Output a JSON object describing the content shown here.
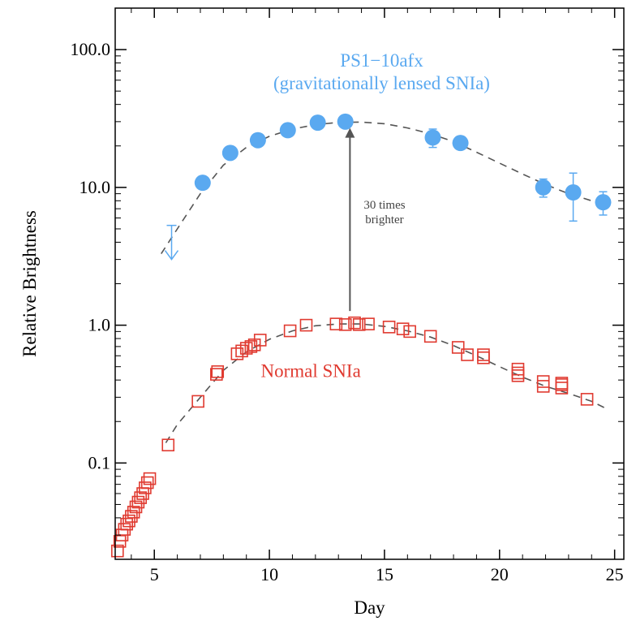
{
  "chart_data": {
    "type": "scatter",
    "title": "",
    "xlabel": "Day",
    "ylabel": "Relative Brightness",
    "xlim": [
      3.3,
      25.4
    ],
    "ylim": [
      0.02,
      200
    ],
    "yscale": "log",
    "grid": false,
    "x_ticks": [
      5,
      10,
      15,
      20,
      25
    ],
    "x_tick_labels": [
      "5",
      "10",
      "15",
      "20",
      "25"
    ],
    "y_ticks": [
      0.1,
      1.0,
      10.0,
      100.0
    ],
    "y_tick_labels": [
      "0.1",
      "1.0",
      "10.0",
      "100.0"
    ],
    "colors": {
      "lensed": "#5aa9f0",
      "normal": "#e03a30",
      "fit": "#555555",
      "arrow": "#555555"
    },
    "series": [
      {
        "name": "Normal SNIa",
        "marker": "open-square",
        "color": "#e03a30",
        "points": [
          [
            3.4,
            0.023
          ],
          [
            3.5,
            0.027
          ],
          [
            3.6,
            0.03
          ],
          [
            3.7,
            0.033
          ],
          [
            3.8,
            0.036
          ],
          [
            3.9,
            0.038
          ],
          [
            4.0,
            0.041
          ],
          [
            4.1,
            0.044
          ],
          [
            4.2,
            0.048
          ],
          [
            4.3,
            0.052
          ],
          [
            4.4,
            0.056
          ],
          [
            4.5,
            0.06
          ],
          [
            4.6,
            0.066
          ],
          [
            4.7,
            0.072
          ],
          [
            4.8,
            0.077
          ],
          [
            5.6,
            0.135
          ],
          [
            6.9,
            0.28
          ],
          [
            7.7,
            0.44
          ],
          [
            7.75,
            0.46
          ],
          [
            8.6,
            0.62
          ],
          [
            8.8,
            0.65
          ],
          [
            9.0,
            0.68
          ],
          [
            9.2,
            0.7
          ],
          [
            9.35,
            0.72
          ],
          [
            9.6,
            0.78
          ],
          [
            10.9,
            0.91
          ],
          [
            11.6,
            1.0
          ],
          [
            12.9,
            1.02
          ],
          [
            13.3,
            1.01
          ],
          [
            13.7,
            1.04
          ],
          [
            13.9,
            1.01
          ],
          [
            14.3,
            1.02
          ],
          [
            15.2,
            0.97
          ],
          [
            15.8,
            0.94
          ],
          [
            16.1,
            0.9
          ],
          [
            17.0,
            0.83
          ],
          [
            18.2,
            0.69
          ],
          [
            18.6,
            0.61
          ],
          [
            19.3,
            0.58
          ],
          [
            19.3,
            0.61
          ],
          [
            20.8,
            0.48
          ],
          [
            20.8,
            0.45
          ],
          [
            20.8,
            0.43
          ],
          [
            21.9,
            0.39
          ],
          [
            21.9,
            0.36
          ],
          [
            22.7,
            0.38
          ],
          [
            22.7,
            0.35
          ],
          [
            22.7,
            0.37
          ],
          [
            23.8,
            0.29
          ]
        ]
      },
      {
        "name": "PS1−10afx",
        "marker": "filled-circle",
        "color": "#5aa9f0",
        "points": [
          [
            7.1,
            10.8,
            0.5
          ],
          [
            8.3,
            17.8,
            0.6
          ],
          [
            9.5,
            22.0,
            0.9
          ],
          [
            10.8,
            26.0,
            1.0
          ],
          [
            12.1,
            29.5,
            1.2
          ],
          [
            13.3,
            30.0,
            1.2
          ],
          [
            17.1,
            23.0,
            3.5
          ],
          [
            18.3,
            21.0,
            1.5
          ],
          [
            21.9,
            10.0,
            1.5
          ],
          [
            23.2,
            9.2,
            3.5
          ],
          [
            24.5,
            7.8,
            1.5
          ]
        ],
        "upper_limit": [
          5.75,
          5.3,
          3.0
        ]
      }
    ],
    "fits": [
      {
        "series": "PS1−10afx",
        "style": "dashed",
        "points": [
          [
            5.3,
            3.3
          ],
          [
            6.0,
            5.0
          ],
          [
            7.0,
            9.0
          ],
          [
            8.0,
            14.5
          ],
          [
            9.0,
            19.5
          ],
          [
            10.0,
            23.5
          ],
          [
            11.0,
            26.5
          ],
          [
            12.0,
            28.5
          ],
          [
            13.0,
            29.6
          ],
          [
            14.0,
            29.8
          ],
          [
            15.0,
            29.0
          ],
          [
            16.0,
            27.0
          ],
          [
            17.0,
            24.5
          ],
          [
            18.0,
            21.5
          ],
          [
            19.0,
            18.0
          ],
          [
            20.0,
            15.0
          ],
          [
            21.0,
            12.5
          ],
          [
            22.0,
            10.5
          ],
          [
            23.0,
            9.0
          ],
          [
            24.0,
            8.0
          ],
          [
            24.6,
            7.5
          ]
        ]
      },
      {
        "series": "Normal SNIa",
        "style": "dashed",
        "points": [
          [
            5.5,
            0.14
          ],
          [
            6.0,
            0.19
          ],
          [
            7.0,
            0.3
          ],
          [
            8.0,
            0.47
          ],
          [
            9.0,
            0.64
          ],
          [
            10.0,
            0.79
          ],
          [
            11.0,
            0.91
          ],
          [
            12.0,
            0.99
          ],
          [
            13.0,
            1.02
          ],
          [
            14.0,
            1.02
          ],
          [
            15.0,
            0.98
          ],
          [
            16.0,
            0.91
          ],
          [
            17.0,
            0.82
          ],
          [
            18.0,
            0.71
          ],
          [
            19.0,
            0.6
          ],
          [
            20.0,
            0.5
          ],
          [
            21.0,
            0.42
          ],
          [
            22.0,
            0.36
          ],
          [
            23.0,
            0.32
          ],
          [
            24.0,
            0.28
          ],
          [
            24.6,
            0.25
          ]
        ]
      }
    ],
    "annotations": {
      "lensed_label_line1": "PS1−10afx",
      "lensed_label_line2": "(gravitationally lensed SNIa)",
      "normal_label": "Normal SNIa",
      "arrow_label_line1": "30 times",
      "arrow_label_line2": "brighter",
      "arrow_x": 13.5,
      "arrow_from": 1.02,
      "arrow_to": 27.0
    }
  }
}
